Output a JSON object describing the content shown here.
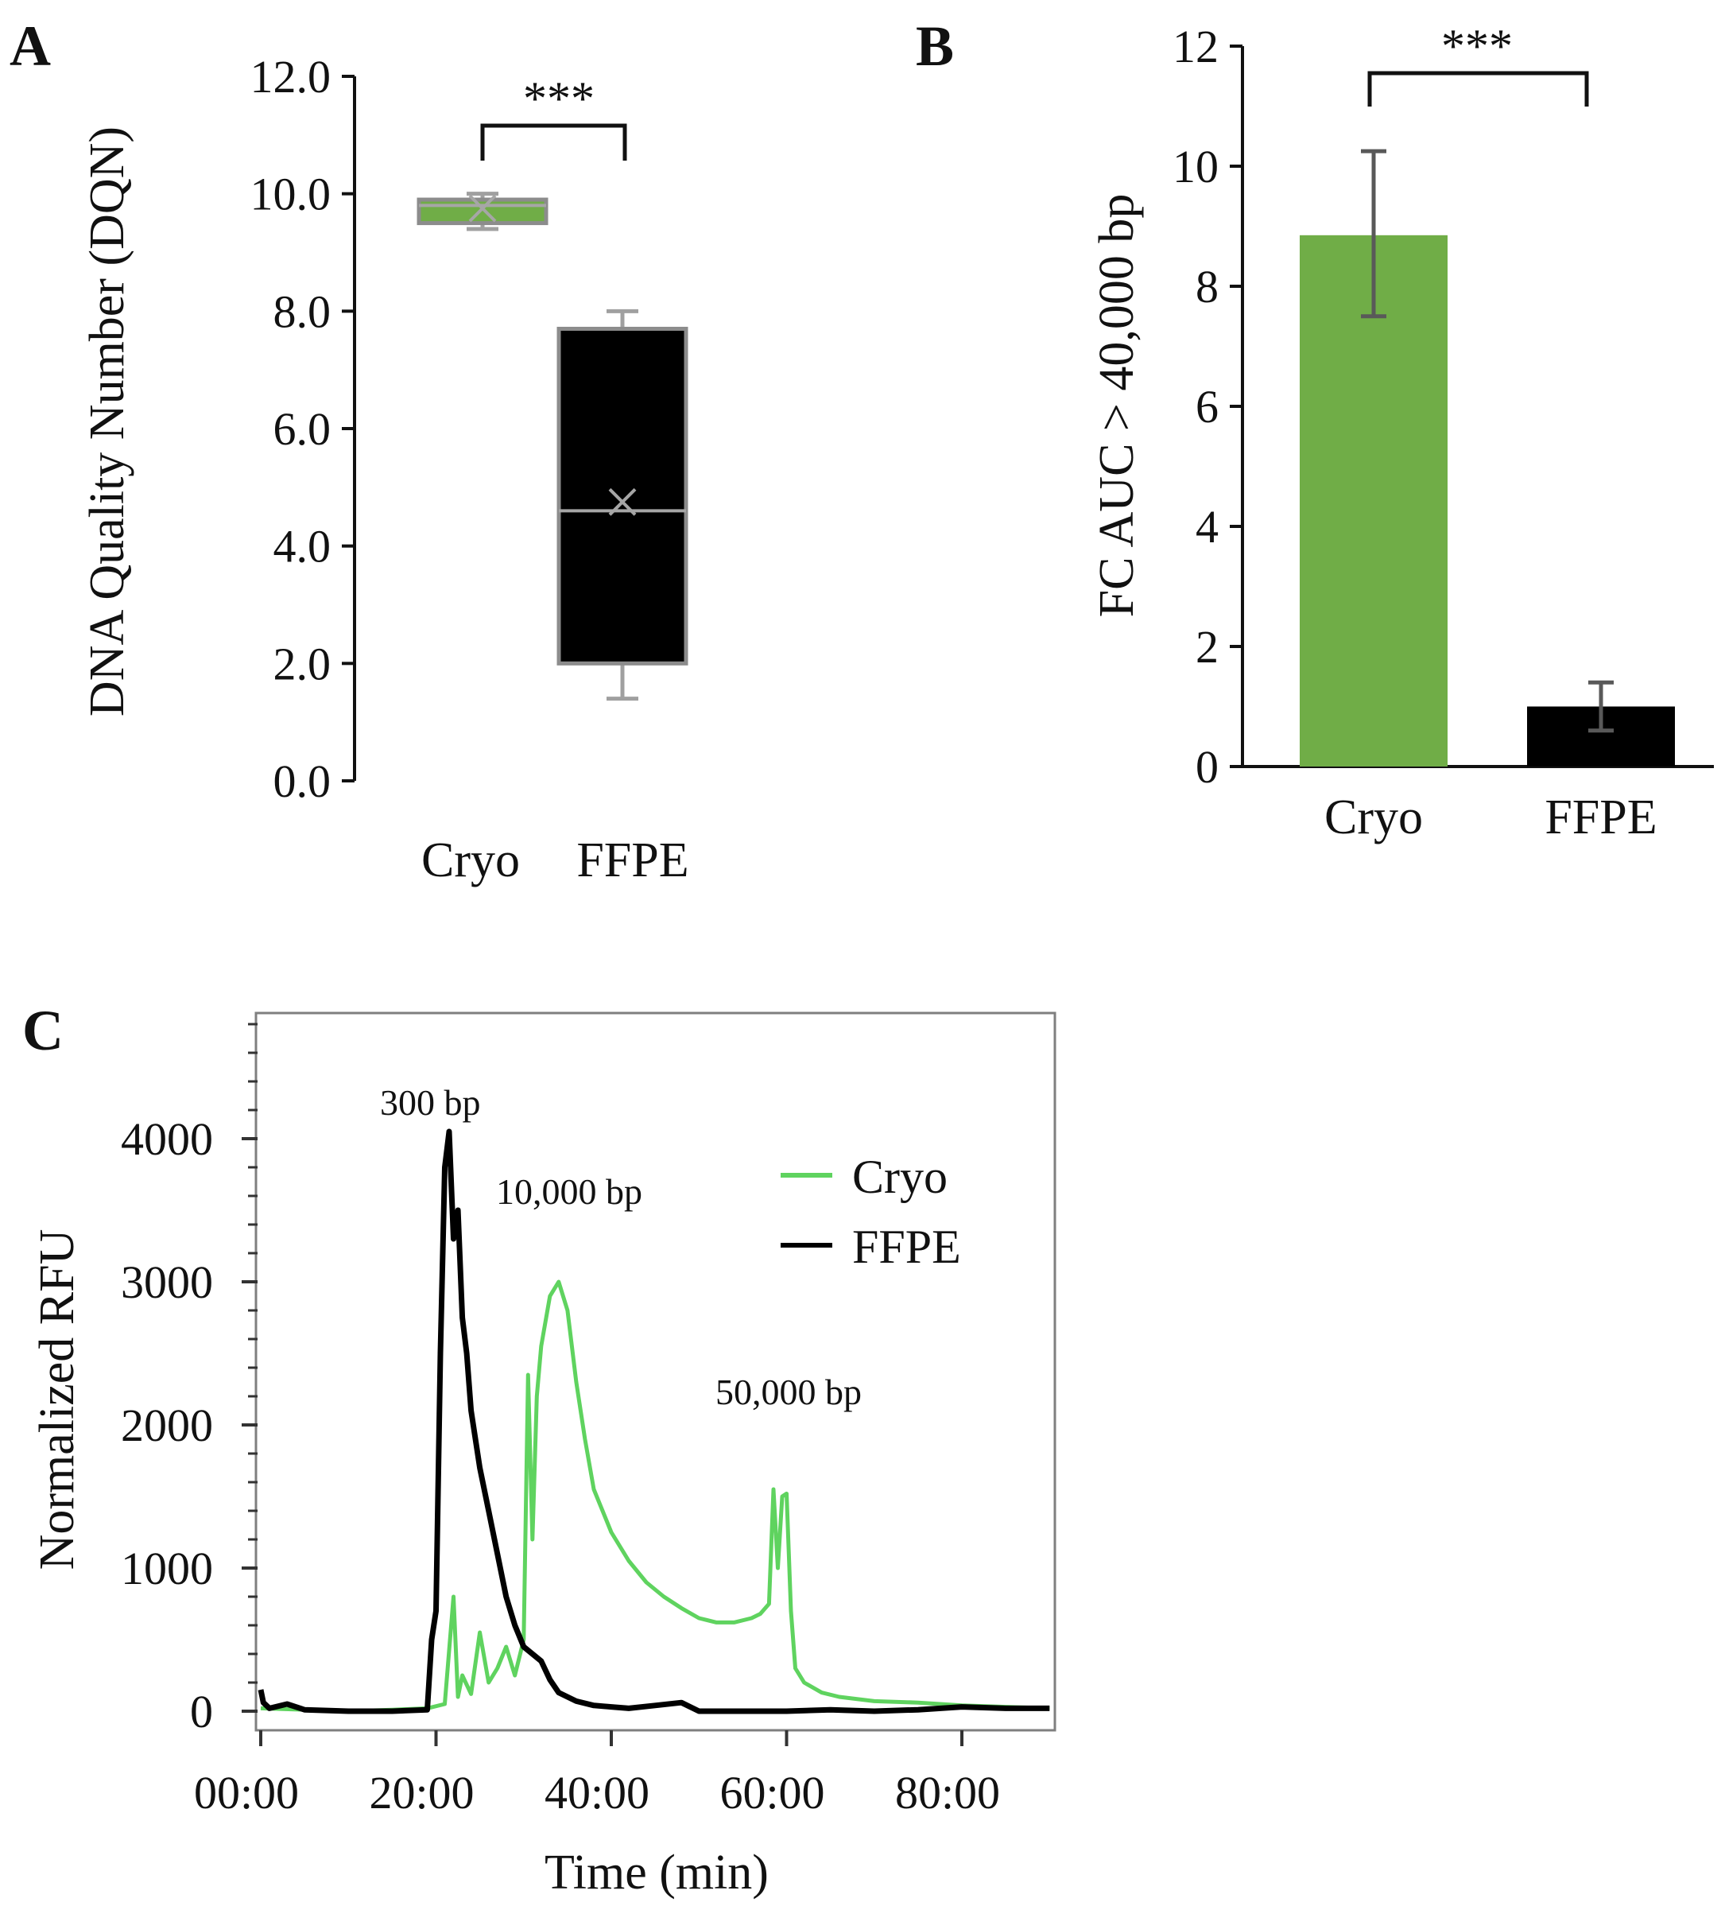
{
  "chart_data": [
    {
      "panel": "A",
      "type": "box",
      "ylabel": "DNA Quality Number (DQN)",
      "ylim": [
        0,
        12
      ],
      "yticks": [
        "0.0",
        "2.0",
        "4.0",
        "6.0",
        "8.0",
        "10.0",
        "12.0"
      ],
      "significance": "***",
      "series": [
        {
          "name": "Cryo",
          "color": "#70ad47",
          "min": 9.4,
          "q1": 9.5,
          "median": 9.8,
          "q3": 9.9,
          "max": 10.0,
          "mean": 9.75
        },
        {
          "name": "FFPE",
          "color": "#000000",
          "min": 1.4,
          "q1": 2.0,
          "median": 4.6,
          "q3": 7.7,
          "max": 8.0,
          "mean": 4.75
        }
      ]
    },
    {
      "panel": "B",
      "type": "bar",
      "ylabel": "FC AUC > 40,000 bp",
      "ylim": [
        0,
        12
      ],
      "yticks": [
        "0",
        "2",
        "4",
        "6",
        "8",
        "10",
        "12"
      ],
      "categories": [
        "Cryo",
        "FFPE"
      ],
      "values": [
        8.85,
        1.0
      ],
      "error_low": [
        7.5,
        0.6
      ],
      "error_high": [
        10.25,
        1.4
      ],
      "colors": [
        "#70ad47",
        "#000000"
      ],
      "significance": "***"
    },
    {
      "panel": "C",
      "type": "line",
      "xlabel": "Time (min)",
      "ylabel": "Normalized RFU",
      "xlim": [
        0,
        90
      ],
      "ylim": [
        -100,
        4900
      ],
      "xticks": [
        "00:00",
        "20:00",
        "40:00",
        "60:00",
        "80:00"
      ],
      "xtick_values": [
        0,
        20,
        40,
        60,
        80
      ],
      "yticks": [
        "0",
        "1000",
        "2000",
        "3000",
        "4000"
      ],
      "ytick_values": [
        0,
        1000,
        2000,
        3000,
        4000
      ],
      "annotations": [
        {
          "text": "300 bp",
          "x": 20.5,
          "y": 4250
        },
        {
          "text": "10,000 bp",
          "x": 27.5,
          "y": 3620
        },
        {
          "text": "50,000 bp",
          "x": 52,
          "y": 2220
        }
      ],
      "legend": {
        "position": "top-right",
        "entries": [
          "Cryo",
          "FFPE"
        ]
      },
      "series": [
        {
          "name": "Cryo",
          "color": "#5fd35f",
          "x": [
            0,
            5,
            10,
            15,
            19,
            21,
            22,
            22.5,
            23,
            24,
            25,
            26,
            27,
            28,
            29,
            30,
            30.5,
            31,
            31.5,
            32,
            33,
            34,
            35,
            36,
            37,
            38,
            40,
            42,
            44,
            46,
            48,
            50,
            52,
            54,
            56,
            57,
            58,
            58.5,
            59,
            59.5,
            60,
            60.5,
            61,
            62,
            64,
            66,
            70,
            75,
            80,
            85,
            90
          ],
          "y": [
            20,
            10,
            0,
            10,
            20,
            50,
            800,
            100,
            250,
            120,
            550,
            200,
            300,
            450,
            250,
            500,
            2350,
            1200,
            2200,
            2550,
            2900,
            3000,
            2800,
            2300,
            1900,
            1550,
            1250,
            1050,
            900,
            800,
            720,
            650,
            620,
            620,
            650,
            680,
            750,
            1550,
            1000,
            1500,
            1520,
            700,
            300,
            200,
            130,
            100,
            70,
            60,
            40,
            30,
            20
          ]
        },
        {
          "name": "FFPE",
          "color": "#000000",
          "x": [
            0,
            0.3,
            1,
            3,
            5,
            10,
            15,
            19,
            19.5,
            20,
            20.5,
            21,
            21.5,
            22,
            22.5,
            23,
            23.5,
            24,
            25,
            26,
            27,
            28,
            29,
            30,
            31,
            32,
            33,
            34,
            36,
            38,
            40,
            42,
            45,
            48,
            50,
            55,
            60,
            65,
            70,
            75,
            80,
            85,
            90
          ],
          "y": [
            150,
            60,
            20,
            50,
            10,
            0,
            0,
            10,
            500,
            700,
            2500,
            3800,
            4050,
            3300,
            3500,
            2750,
            2500,
            2100,
            1700,
            1400,
            1100,
            800,
            600,
            450,
            400,
            350,
            220,
            130,
            70,
            40,
            30,
            20,
            40,
            60,
            0,
            0,
            0,
            10,
            0,
            10,
            30,
            20,
            20
          ]
        }
      ]
    }
  ]
}
